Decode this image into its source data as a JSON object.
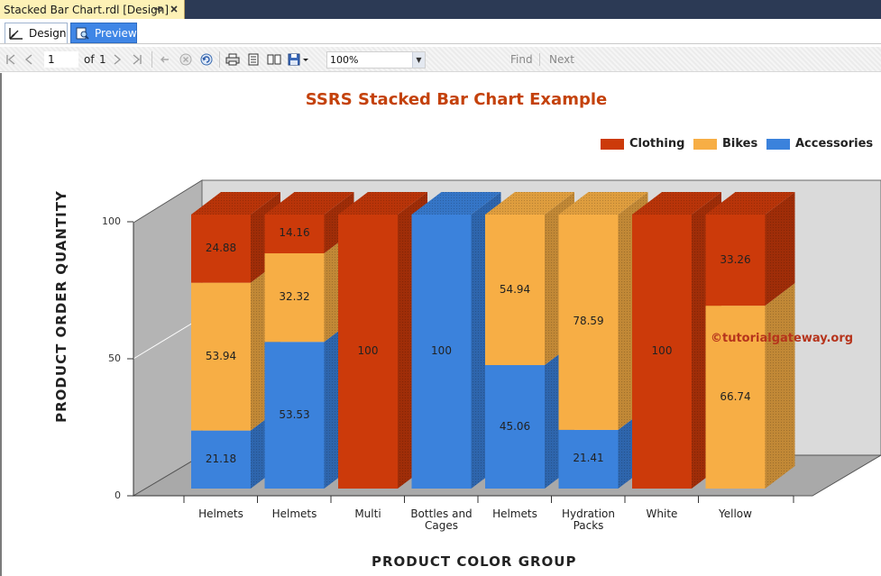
{
  "doc_tab": {
    "title": "Stacked Bar Chart.rdl [Design]",
    "pin_icon": "pin-icon",
    "close_icon": "close-icon"
  },
  "view_tabs": [
    {
      "label": "Design",
      "icon": "design-icon"
    },
    {
      "label": "Preview",
      "icon": "preview-icon"
    }
  ],
  "toolbar": {
    "page_current": "1",
    "page_of_label": "of",
    "page_total": "1",
    "zoom": "100%",
    "find_label": "Find",
    "next_label": "Next"
  },
  "colors": {
    "clothing": "#cc3a0a",
    "bikes": "#f7ae45",
    "accessories": "#3b82dc",
    "title": "#c4420c"
  },
  "chart_data": {
    "type": "bar",
    "stacked": true,
    "three_d": true,
    "title": "SSRS Stacked Bar Chart Example",
    "xlabel": "PRODUCT COLOR GROUP",
    "ylabel": "PRODUCT ORDER QUANTITY",
    "ylim": [
      0,
      100
    ],
    "yticks": [
      "0",
      "50",
      "100"
    ],
    "legend_position": "top-right",
    "categories": [
      "Helmets",
      "Helmets",
      "Multi",
      "Bottles and Cages",
      "Helmets",
      "Hydration Packs",
      "White",
      "Yellow"
    ],
    "series": [
      {
        "name": "Accessories",
        "color": "#3b82dc",
        "values": [
          21.18,
          53.53,
          0,
          100,
          45.06,
          21.41,
          0,
          0
        ]
      },
      {
        "name": "Bikes",
        "color": "#f7ae45",
        "values": [
          53.94,
          32.32,
          0,
          0,
          54.94,
          78.59,
          0,
          66.74
        ]
      },
      {
        "name": "Clothing",
        "color": "#cc3a0a",
        "values": [
          24.88,
          14.16,
          100,
          0,
          0,
          0,
          100,
          33.26
        ]
      }
    ],
    "legend_order": [
      "Clothing",
      "Bikes",
      "Accessories"
    ]
  },
  "watermark": "©tutorialgateway.org"
}
